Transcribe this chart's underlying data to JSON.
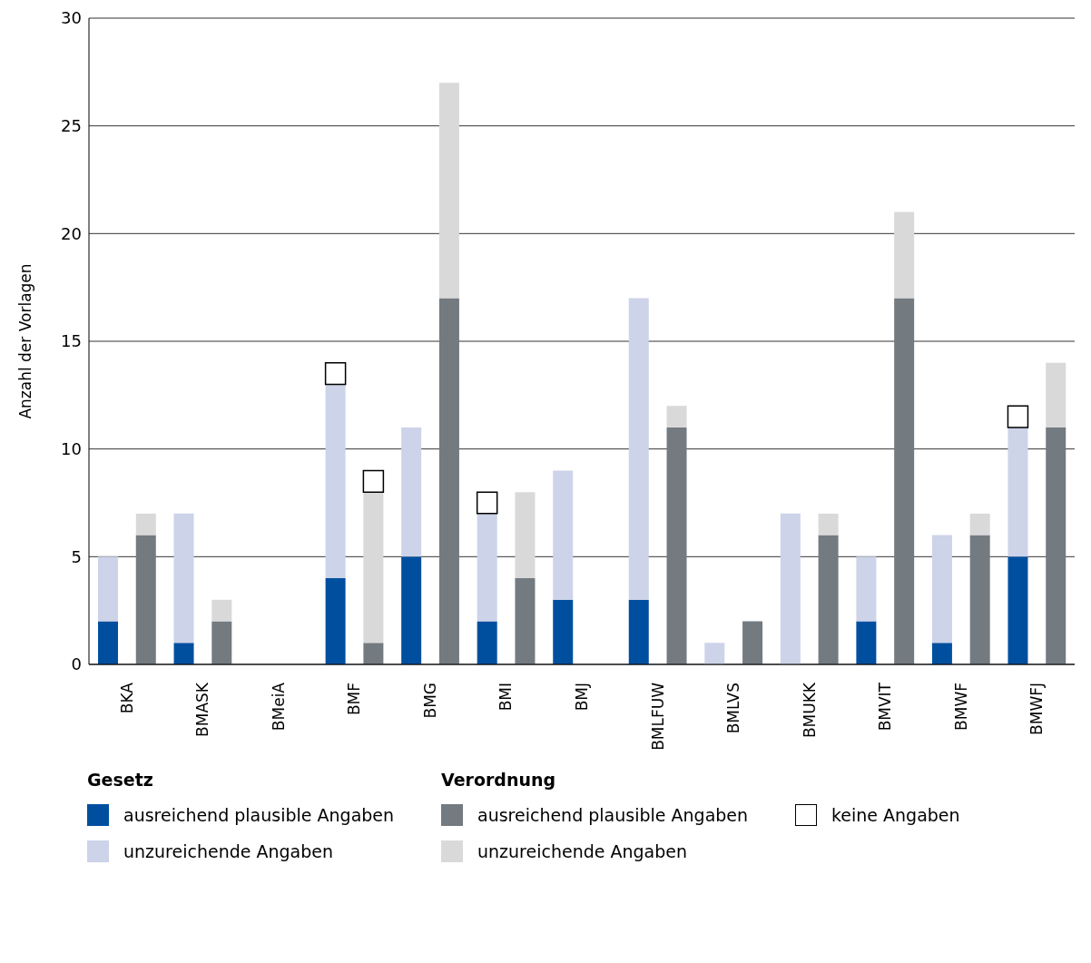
{
  "chart_data": {
    "type": "bar",
    "stacked": true,
    "ylabel": "Anzahl der Vorlagen",
    "categories": [
      "BKA",
      null,
      "BMASK",
      null,
      "BMeiA",
      null,
      "BMF",
      null,
      "BMG",
      null,
      "BMI",
      null,
      "BMJ",
      null,
      "BMLFUW",
      null,
      "BMLVS",
      null,
      "BMUKK",
      null,
      "BMVIT",
      null,
      "BMWF",
      null,
      "BMWFJ",
      null
    ],
    "series": [
      {
        "name": "ausreichend plausible Angaben",
        "colors": [
          "#004f9f",
          "#737a80",
          "#004f9f",
          "#737a80",
          "#004f9f",
          "#737a80",
          "#004f9f",
          "#737a80",
          "#004f9f",
          "#737a80",
          "#004f9f",
          "#737a80",
          "#004f9f",
          "#737a80",
          "#004f9f",
          "#737a80",
          "#004f9f",
          "#737a80",
          "#004f9f",
          "#737a80",
          "#004f9f",
          "#737a80",
          "#004f9f",
          "#737a80",
          "#004f9f",
          "#737a80"
        ],
        "values": [
          2,
          6,
          1,
          2,
          0,
          0,
          4,
          1,
          5,
          17,
          2,
          4,
          3,
          0,
          3,
          11,
          0,
          2,
          0,
          6,
          2,
          17,
          1,
          6,
          5,
          11
        ]
      },
      {
        "name": "unzureichende Angaben",
        "colors": [
          "#cdd3e9",
          "#d9d9da",
          "#cdd3e9",
          "#d9d9da",
          "#cdd3e9",
          "#d9d9da",
          "#cdd3e9",
          "#d9d9da",
          "#cdd3e9",
          "#d9d9da",
          "#cdd3e9",
          "#d9d9da",
          "#cdd3e9",
          "#d9d9da",
          "#cdd3e9",
          "#d9d9da",
          "#cdd3e9",
          "#d9d9da",
          "#cdd3e9",
          "#d9d9da",
          "#cdd3e9",
          "#d9d9da",
          "#cdd3e9",
          "#d9d9da",
          "#cdd3e9",
          "#d9d9da"
        ],
        "values": [
          3,
          1,
          6,
          1,
          0,
          0,
          9,
          7,
          6,
          10,
          5,
          4,
          6,
          0,
          14,
          1,
          1,
          0,
          7,
          1,
          3,
          4,
          5,
          1,
          6,
          3
        ]
      },
      {
        "name": "keine Angaben",
        "color": "#ffffff",
        "values": [
          0,
          0,
          0,
          0,
          0,
          0,
          1,
          1,
          0,
          0,
          1,
          0,
          0,
          0,
          0,
          0,
          0,
          0,
          0,
          0,
          0,
          0,
          0,
          0,
          1,
          0
        ]
      }
    ],
    "annotations": [
      "Gesetz",
      "Verordnung"
    ],
    "ylim": [
      0,
      30
    ],
    "yticks": [
      0,
      5,
      10,
      15,
      20,
      25,
      30
    ],
    "grid": "y",
    "legend": "bottom"
  }
}
